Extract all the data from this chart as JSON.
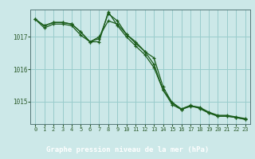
{
  "xlabel": "Graphe pression niveau de la mer (hPa)",
  "background_color": "#cce8e8",
  "plot_bg_color": "#cce8e8",
  "grid_color": "#99cccc",
  "line_color": "#1a5c1a",
  "bottom_bar_color": "#2d6b2d",
  "bottom_text_color": "#ffffff",
  "axis_text_color": "#2d5c2d",
  "xlim": [
    -0.5,
    23.5
  ],
  "ylim": [
    1014.3,
    1017.85
  ],
  "yticks": [
    1015,
    1016,
    1017
  ],
  "xticks": [
    0,
    1,
    2,
    3,
    4,
    5,
    6,
    7,
    8,
    9,
    10,
    11,
    12,
    13,
    14,
    15,
    16,
    17,
    18,
    19,
    20,
    21,
    22,
    23
  ],
  "series": [
    {
      "x": [
        0,
        1,
        2,
        3,
        4,
        5,
        6,
        7,
        8,
        9,
        10,
        11,
        12,
        13,
        14,
        15,
        16,
        17,
        18,
        19,
        20,
        21,
        22,
        23
      ],
      "y": [
        1017.55,
        1017.35,
        1017.45,
        1017.45,
        1017.4,
        1017.15,
        1016.85,
        1016.95,
        1017.72,
        1017.5,
        1017.08,
        1016.85,
        1016.55,
        1016.35,
        1015.45,
        1014.95,
        1014.75,
        1014.85,
        1014.8,
        1014.65,
        1014.55,
        1014.55,
        1014.5,
        1014.45
      ]
    },
    {
      "x": [
        0,
        1,
        2,
        3,
        4,
        5,
        6,
        7,
        8,
        9,
        10,
        11,
        12,
        13,
        14,
        15,
        16,
        17,
        18,
        19,
        20,
        21,
        22,
        23
      ],
      "y": [
        1017.55,
        1017.35,
        1017.45,
        1017.45,
        1017.4,
        1017.15,
        1016.85,
        1017.0,
        1017.5,
        1017.4,
        1017.08,
        1016.8,
        1016.55,
        1016.15,
        1015.35,
        1014.9,
        1014.75,
        1014.87,
        1014.82,
        1014.67,
        1014.57,
        1014.57,
        1014.52,
        1014.47
      ]
    },
    {
      "x": [
        0,
        1,
        2,
        3,
        4,
        5,
        6,
        7,
        8,
        9,
        10,
        11,
        12,
        13,
        14,
        15,
        16,
        17,
        18,
        19,
        20,
        21,
        22,
        23
      ],
      "y": [
        1017.55,
        1017.28,
        1017.4,
        1017.4,
        1017.35,
        1017.05,
        1016.85,
        1016.85,
        1017.78,
        1017.35,
        1017.0,
        1016.72,
        1016.45,
        1016.05,
        1015.35,
        1014.97,
        1014.77,
        1014.88,
        1014.78,
        1014.64,
        1014.54,
        1014.54,
        1014.5,
        1014.44
      ]
    }
  ]
}
